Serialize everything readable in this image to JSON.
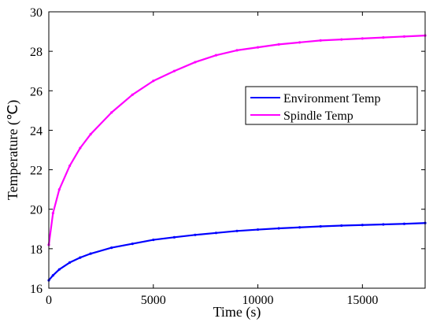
{
  "chart_data": {
    "type": "line",
    "xlabel": "Time (s)",
    "ylabel": "Temperature (℃)",
    "xlim": [
      0,
      18000
    ],
    "ylim": [
      16,
      30
    ],
    "xticks": [
      0,
      5000,
      10000,
      15000
    ],
    "yticks": [
      16,
      18,
      20,
      22,
      24,
      26,
      28,
      30
    ],
    "grid": false,
    "legend_position": "right",
    "x": [
      0,
      200,
      500,
      1000,
      1500,
      2000,
      3000,
      4000,
      5000,
      6000,
      7000,
      8000,
      9000,
      10000,
      11000,
      12000,
      13000,
      14000,
      15000,
      16000,
      17000,
      18000
    ],
    "series": [
      {
        "name": "Environment Temp",
        "color": "#0000ff",
        "values": [
          16.4,
          16.65,
          16.95,
          17.3,
          17.55,
          17.75,
          18.05,
          18.25,
          18.45,
          18.58,
          18.7,
          18.8,
          18.9,
          18.97,
          19.03,
          19.08,
          19.13,
          19.17,
          19.2,
          19.23,
          19.26,
          19.3
        ]
      },
      {
        "name": "Spindle Temp",
        "color": "#ff00ff",
        "values": [
          18.2,
          19.8,
          21.0,
          22.2,
          23.1,
          23.8,
          24.9,
          25.8,
          26.5,
          27.0,
          27.45,
          27.8,
          28.05,
          28.2,
          28.35,
          28.45,
          28.55,
          28.6,
          28.65,
          28.7,
          28.75,
          28.8
        ]
      }
    ]
  }
}
